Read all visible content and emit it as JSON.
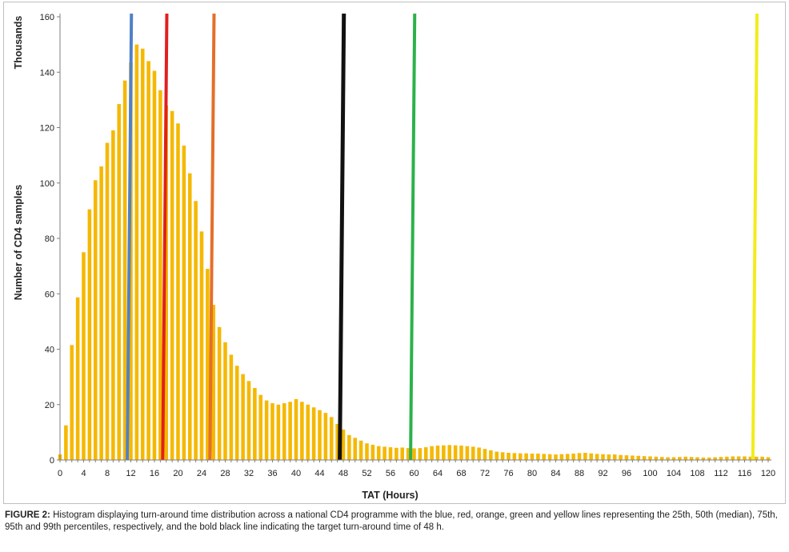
{
  "chart_data": {
    "type": "bar",
    "xlabel": "TAT (Hours)",
    "ylabel": "Number of CD4 samples",
    "yunit": "Thousands",
    "xlim": [
      0,
      120
    ],
    "ylim": [
      0,
      160
    ],
    "yticks": [
      0,
      20,
      40,
      60,
      80,
      100,
      120,
      140,
      160
    ],
    "xticks": [
      0,
      4,
      8,
      12,
      16,
      20,
      24,
      28,
      32,
      36,
      40,
      44,
      48,
      52,
      56,
      60,
      64,
      68,
      72,
      76,
      80,
      84,
      88,
      92,
      96,
      100,
      104,
      108,
      112,
      116,
      120
    ],
    "grid": false,
    "bar_color": "#f5b800",
    "x": [
      0,
      1,
      2,
      3,
      4,
      5,
      6,
      7,
      8,
      9,
      10,
      11,
      12,
      13,
      14,
      15,
      16,
      17,
      18,
      19,
      20,
      21,
      22,
      23,
      24,
      25,
      26,
      27,
      28,
      29,
      30,
      31,
      32,
      33,
      34,
      35,
      36,
      37,
      38,
      39,
      40,
      41,
      42,
      43,
      44,
      45,
      46,
      47,
      48,
      49,
      50,
      51,
      52,
      53,
      54,
      55,
      56,
      57,
      58,
      59,
      60,
      61,
      62,
      63,
      64,
      65,
      66,
      67,
      68,
      69,
      70,
      71,
      72,
      73,
      74,
      75,
      76,
      77,
      78,
      79,
      80,
      81,
      82,
      83,
      84,
      85,
      86,
      87,
      88,
      89,
      90,
      91,
      92,
      93,
      94,
      95,
      96,
      97,
      98,
      99,
      100,
      101,
      102,
      103,
      104,
      105,
      106,
      107,
      108,
      109,
      110,
      111,
      112,
      113,
      114,
      115,
      116,
      117,
      118,
      119,
      120
    ],
    "values": [
      2,
      12.5,
      41.5,
      58.7,
      75,
      90.5,
      101,
      106,
      114.5,
      119,
      128.5,
      137,
      143.5,
      150,
      148.5,
      144,
      140.5,
      133.5,
      128,
      126,
      121.5,
      113.5,
      103.5,
      93.5,
      82.5,
      69,
      56,
      48,
      42.5,
      38,
      34,
      31,
      28.5,
      26,
      23.5,
      21.5,
      20.5,
      20,
      20.5,
      21,
      22,
      21,
      20,
      19,
      18,
      17,
      15.5,
      13,
      11,
      9,
      8,
      7,
      6,
      5.5,
      5,
      4.8,
      4.6,
      4.4,
      4.5,
      4.3,
      4.2,
      4.3,
      4.6,
      5,
      5.2,
      5.3,
      5.4,
      5.3,
      5.2,
      5,
      4.8,
      4.5,
      4,
      3.5,
      3,
      2.8,
      2.6,
      2.5,
      2.4,
      2.4,
      2.3,
      2.3,
      2.2,
      2.1,
      2,
      2.1,
      2.2,
      2.3,
      2.5,
      2.6,
      2.4,
      2.2,
      2.1,
      2,
      2,
      1.8,
      1.7,
      1.6,
      1.5,
      1.4,
      1.3,
      1.2,
      1.1,
      1,
      1,
      1.1,
      1.2,
      1.1,
      1,
      0.9,
      0.9,
      1,
      1.1,
      1.2,
      1.3,
      1.3,
      1.3,
      1.2,
      1.2,
      1.2,
      1
    ],
    "lines": [
      {
        "name": "25th percentile",
        "x": 12,
        "color": "#4f81c7",
        "width": 4
      },
      {
        "name": "50th percentile (median)",
        "x": 18,
        "color": "#e0201f",
        "width": 4
      },
      {
        "name": "75th percentile",
        "x": 26,
        "color": "#e46f2a",
        "width": 4
      },
      {
        "name": "Target turn-around time",
        "x": 48,
        "color": "#111111",
        "width": 5
      },
      {
        "name": "95th percentile",
        "x": 60,
        "color": "#2bb24a",
        "width": 4
      },
      {
        "name": "99th percentile",
        "x": 118,
        "color": "#f2ec1c",
        "width": 4
      }
    ]
  },
  "caption": {
    "label": "FIGURE 2:",
    "text": " Histogram displaying turn-around time distribution across a national CD4 programme with the blue, red, orange, green and yellow lines representing the 25th, 50th (median), 75th, 95th and 99th percentiles, respectively, and the bold black line indicating the target turn-around time of 48 h."
  }
}
